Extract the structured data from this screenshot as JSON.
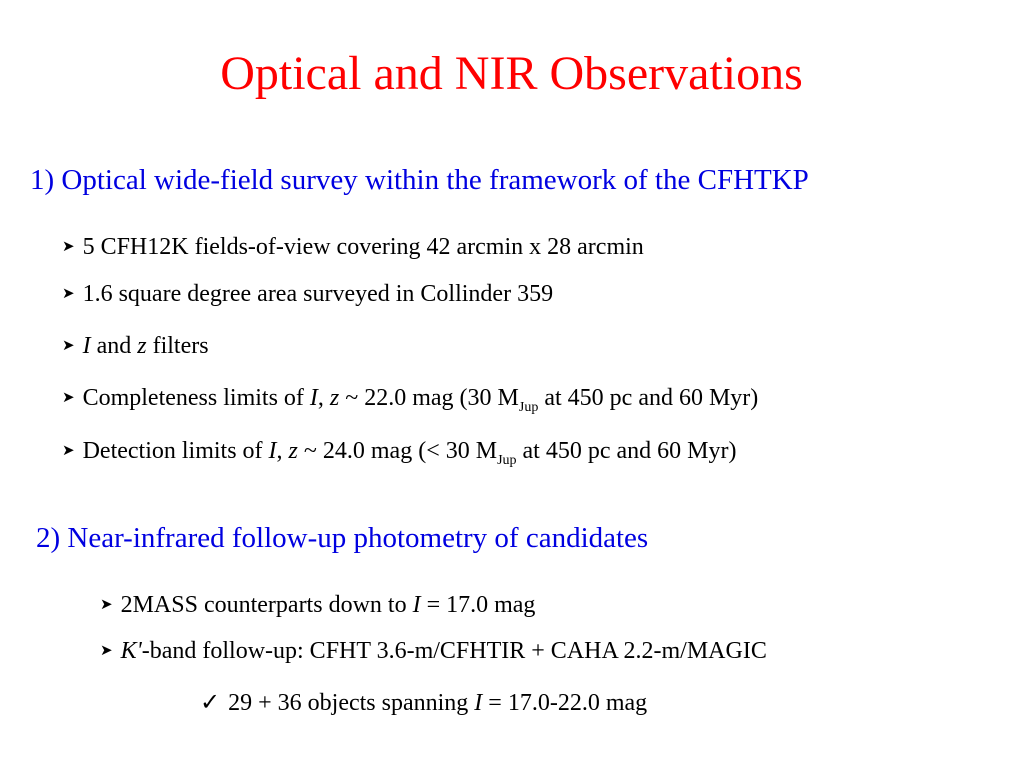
{
  "slide": {
    "title": "Optical and NIR Observations",
    "accent_title_color": "#ff0000",
    "accent_heading_color": "#0000e0"
  },
  "section1": {
    "heading": "1) Optical wide-field survey within the framework of the CFHTKP",
    "bullet_icon": "arrow-right-icon",
    "bullets": [
      {
        "text": "5 CFH12K fields-of-view covering 42 arcmin x 28 arcmin"
      },
      {
        "text": "1.6 square degree area surveyed in Collinder 359"
      },
      {
        "i_var": "I",
        "and": " and ",
        "z_var": "z",
        "rest": " filters"
      },
      {
        "pre": "Completeness limits of ",
        "i_var": "I",
        "comma": ", ",
        "z_var": "z",
        "mid": " ~ 22.0 mag (30 M",
        "sub": "Jup",
        "post": " at 450 pc and 60 Myr)"
      },
      {
        "pre": "Detection limits of ",
        "i_var": "I",
        "comma": ", ",
        "z_var": "z",
        "mid": " ~ 24.0 mag (< 30 M",
        "sub": "Jup",
        "post": " at 450 pc and 60 Myr)"
      }
    ]
  },
  "section2": {
    "heading": "2) Near-infrared follow-up photometry of candidates",
    "bullets": [
      {
        "pre": "2MASS counterparts down to ",
        "i_var": "I",
        "post": " = 17.0 mag"
      },
      {
        "k_var": "K'",
        "post": "-band follow-up: CFHT 3.6-m/CFHTIR + CAHA 2.2-m/MAGIC"
      }
    ],
    "check_icon": "checkmark-icon",
    "check_item": {
      "pre": "29 + 36 objects spanning ",
      "i_var": "I",
      "post": " = 17.0-22.0 mag"
    }
  }
}
